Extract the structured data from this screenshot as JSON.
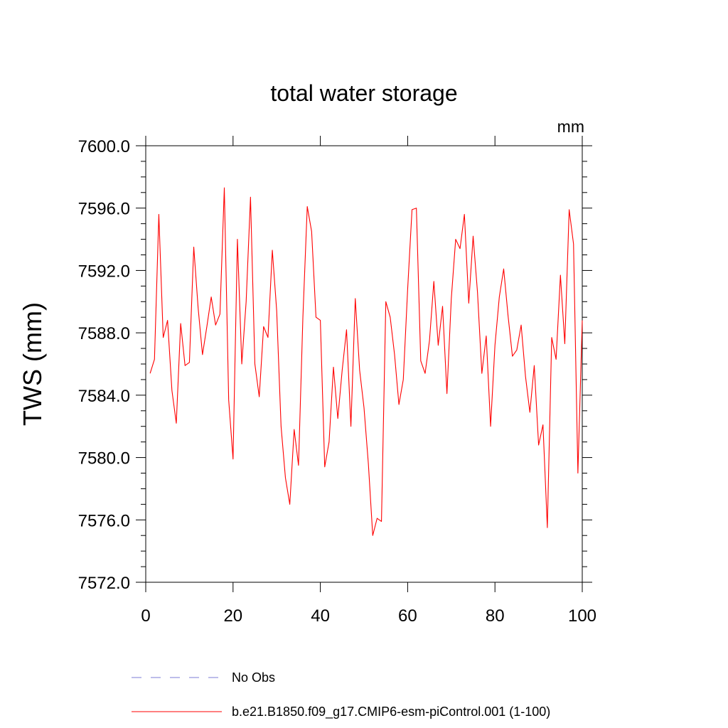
{
  "chart_data": {
    "type": "line",
    "title": "total water storage",
    "units_label": "mm",
    "xlabel": "",
    "ylabel": "TWS  (mm)",
    "xlim": [
      0,
      100
    ],
    "ylim": [
      7572.0,
      7600.0
    ],
    "x_ticks": [
      0,
      20,
      40,
      60,
      80,
      100
    ],
    "x_tick_labels": [
      "0",
      "20",
      "40",
      "60",
      "80",
      "100"
    ],
    "y_ticks": [
      7572.0,
      7576.0,
      7580.0,
      7584.0,
      7588.0,
      7592.0,
      7596.0,
      7600.0
    ],
    "y_tick_labels": [
      "7572.0",
      "7576.0",
      "7580.0",
      "7584.0",
      "7588.0",
      "7592.0",
      "7596.0",
      "7600.0"
    ],
    "grid": false,
    "legend_position": "bottom",
    "series": [
      {
        "name": "b.e21.B1850.f09_g17.CMIP6-esm-piControl.001 (1-100)",
        "color": "#ff0000",
        "style": "solid",
        "x": [
          1,
          2,
          3,
          4,
          5,
          6,
          7,
          8,
          9,
          10,
          11,
          12,
          13,
          14,
          15,
          16,
          17,
          18,
          19,
          20,
          21,
          22,
          23,
          24,
          25,
          26,
          27,
          28,
          29,
          30,
          31,
          32,
          33,
          34,
          35,
          36,
          37,
          38,
          39,
          40,
          41,
          42,
          43,
          44,
          45,
          46,
          47,
          48,
          49,
          50,
          51,
          52,
          53,
          54,
          55,
          56,
          57,
          58,
          59,
          60,
          61,
          62,
          63,
          64,
          65,
          66,
          67,
          68,
          69,
          70,
          71,
          72,
          73,
          74,
          75,
          76,
          77,
          78,
          79,
          80,
          81,
          82,
          83,
          84,
          85,
          86,
          87,
          88,
          89,
          90,
          91,
          92,
          93,
          94,
          95,
          96,
          97,
          98,
          99,
          100
        ],
        "values": [
          7585.4,
          7586.3,
          7595.6,
          7587.7,
          7588.8,
          7584.3,
          7582.2,
          7588.6,
          7585.9,
          7586.1,
          7593.5,
          7589.6,
          7586.6,
          7588.4,
          7590.3,
          7588.5,
          7589.2,
          7597.3,
          7583.7,
          7579.9,
          7594.0,
          7586.0,
          7590.0,
          7596.7,
          7586.0,
          7583.9,
          7588.4,
          7587.7,
          7593.3,
          7589.4,
          7582.0,
          7578.7,
          7577.0,
          7581.8,
          7579.5,
          7589.0,
          7596.1,
          7594.5,
          7589.0,
          7588.8,
          7579.4,
          7581.0,
          7585.8,
          7582.5,
          7585.6,
          7588.2,
          7582.0,
          7590.2,
          7585.6,
          7583.2,
          7579.6,
          7575.0,
          7576.1,
          7575.9,
          7590.0,
          7589.0,
          7586.6,
          7583.4,
          7585.0,
          7590.8,
          7595.9,
          7596.0,
          7586.2,
          7585.4,
          7587.5,
          7591.3,
          7587.2,
          7589.7,
          7584.1,
          7590.2,
          7594.0,
          7593.4,
          7595.6,
          7589.9,
          7594.2,
          7590.6,
          7585.4,
          7587.8,
          7582.0,
          7587.2,
          7590.3,
          7592.1,
          7589.1,
          7586.5,
          7586.9,
          7588.5,
          7585.2,
          7582.9,
          7585.9,
          7580.8,
          7582.1,
          7575.5,
          7587.7,
          7586.3,
          7591.7,
          7587.3,
          7595.9,
          7593.7,
          7579.0,
          7588.8
        ]
      }
    ],
    "legend": [
      {
        "label": "No Obs",
        "color": "#7b7bd6",
        "style": "dashed"
      },
      {
        "label": "b.e21.B1850.f09_g17.CMIP6-esm-piControl.001 (1-100)",
        "color": "#ff0000",
        "style": "solid"
      }
    ]
  }
}
